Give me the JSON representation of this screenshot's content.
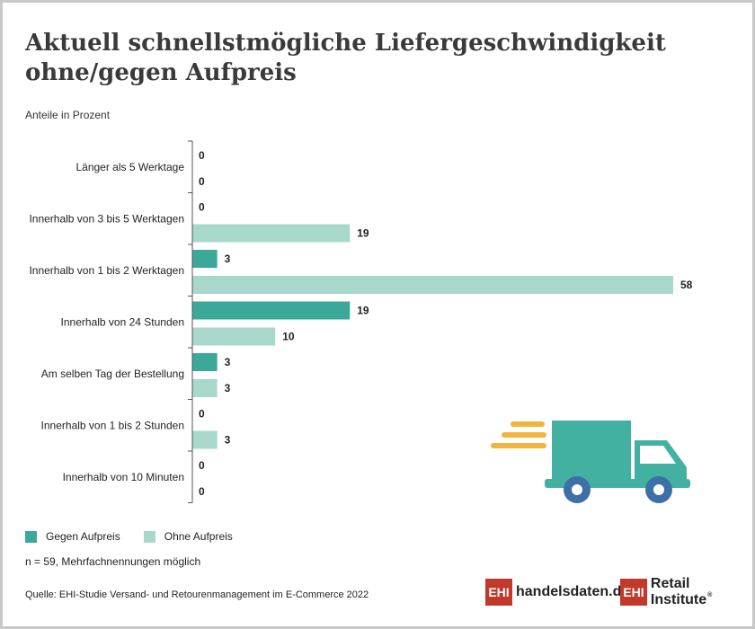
{
  "header": {
    "title_line1": "Aktuell schnellstmögliche Liefergeschwindigkeit",
    "title_line2": "ohne/gegen Aufpreis",
    "subtitle": "Anteile in Prozent"
  },
  "colors": {
    "gegen": "#3aa99a",
    "ohne": "#a8d8cc",
    "axis": "#555555",
    "truck": "#43b1a1",
    "truck_wheel": "#3d6fa8",
    "speed_lines": "#f2b53b"
  },
  "chart_data": {
    "type": "bar",
    "orientation": "horizontal",
    "categories": [
      "Länger als 5 Werktage",
      "Innerhalb von 3 bis 5 Werktagen",
      "Innerhalb von 1 bis 2 Werktagen",
      "Innerhalb von 24 Stunden",
      "Am selben Tag der Bestellung",
      "Innerhalb von 1 bis 2 Stunden",
      "Innerhalb von 10 Minuten"
    ],
    "series": [
      {
        "name": "Gegen Aufpreis",
        "values": [
          0,
          0,
          3,
          19,
          3,
          0,
          0
        ]
      },
      {
        "name": "Ohne Aufpreis",
        "values": [
          0,
          19,
          58,
          10,
          3,
          3,
          0
        ]
      }
    ],
    "xlim": [
      0,
      58
    ],
    "grid": false,
    "legend_position": "bottom-left"
  },
  "legend": {
    "gegen_label": "Gegen Aufpreis",
    "ohne_label": "Ohne Aufpreis"
  },
  "footer": {
    "note": "n = 59, Mehrfachnennungen möglich",
    "source": "Quelle: EHI-Studie Versand- und Retourenmanagement im E-Commerce 2022"
  },
  "logos": {
    "logo1_box": "EHI",
    "logo1_text": "handelsdaten.de",
    "logo2_box": "EHI",
    "logo2_text": "Retail Institute",
    "logo2_mark": "®"
  },
  "icons": [
    "delivery-truck-icon"
  ]
}
